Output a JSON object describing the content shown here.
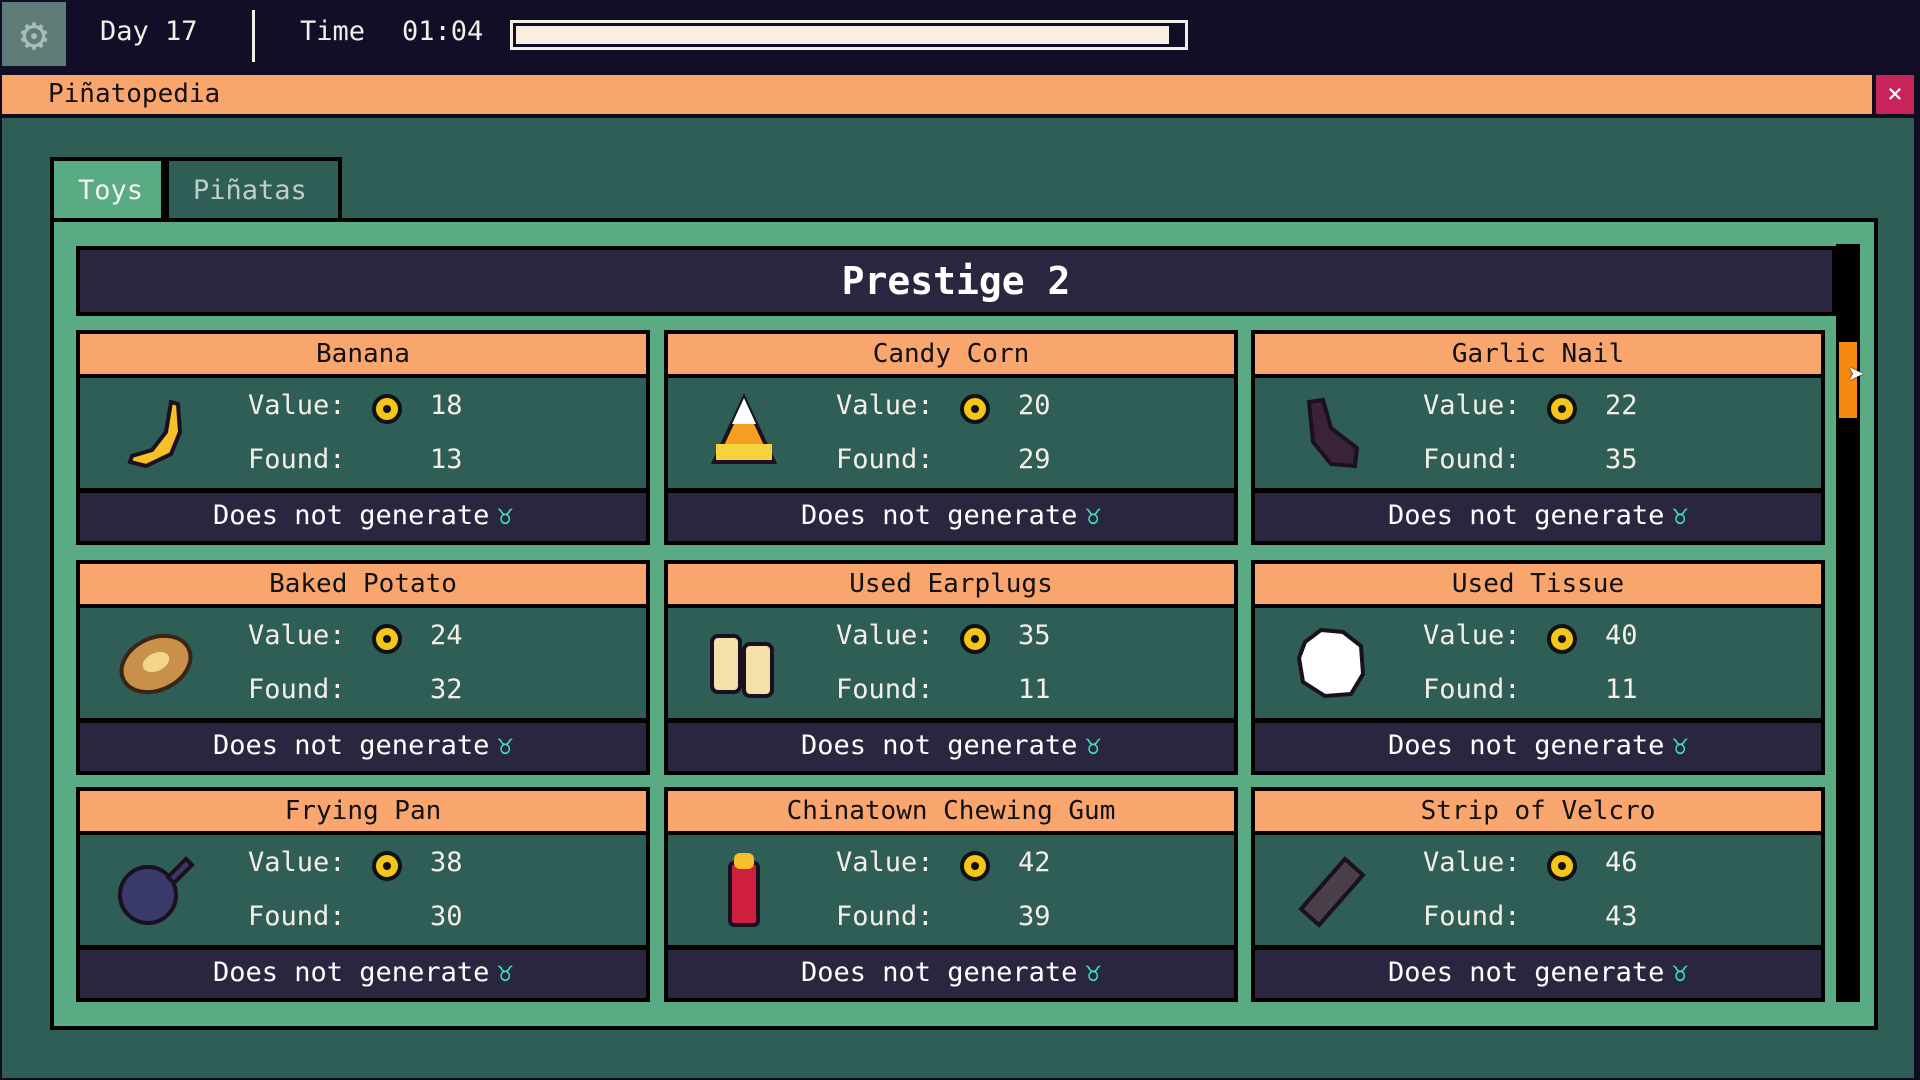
{
  "topbar": {
    "settings_icon": "gear-icon",
    "day": "Day 17",
    "time_label": "Time",
    "time_value": "01:04",
    "day_progress_percent": 98
  },
  "window": {
    "title": "Piñatopedia",
    "close_label": "×"
  },
  "tabs": [
    {
      "label": "Toys",
      "active": true
    },
    {
      "label": "Piñatas",
      "active": false
    }
  ],
  "section_title": "Prestige 2",
  "labels": {
    "value": "Value:",
    "found": "Found:"
  },
  "colors": {
    "accent": "#f8a66e",
    "panel": "#2f5e56",
    "frame": "#5aaa84",
    "footer": "#2a2640",
    "close": "#c8245a",
    "scroll_thumb": "#f48a10"
  },
  "items": [
    {
      "name": "Banana",
      "value": "18",
      "found": "13",
      "generates": "Does not generate",
      "icon": "banana"
    },
    {
      "name": "Candy Corn",
      "value": "20",
      "found": "29",
      "generates": "Does not generate",
      "icon": "candy-corn"
    },
    {
      "name": "Garlic Nail",
      "value": "22",
      "found": "35",
      "generates": "Does not generate",
      "icon": "garlic-nail"
    },
    {
      "name": "Baked Potato",
      "value": "24",
      "found": "32",
      "generates": "Does not generate",
      "icon": "baked-potato"
    },
    {
      "name": "Used Earplugs",
      "value": "35",
      "found": "11",
      "generates": "Does not generate",
      "icon": "earplugs"
    },
    {
      "name": "Used Tissue",
      "value": "40",
      "found": "11",
      "generates": "Does not generate",
      "icon": "tissue"
    },
    {
      "name": "Frying Pan",
      "value": "38",
      "found": "30",
      "generates": "Does not generate",
      "icon": "frying-pan"
    },
    {
      "name": "Chinatown Chewing Gum",
      "value": "42",
      "found": "39",
      "generates": "Does not generate",
      "icon": "chewing-gum"
    },
    {
      "name": "Strip of Velcro",
      "value": "46",
      "found": "43",
      "generates": "Does not generate",
      "icon": "velcro"
    }
  ]
}
